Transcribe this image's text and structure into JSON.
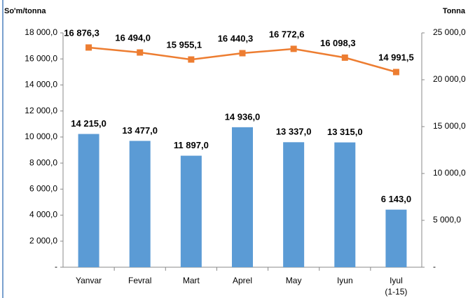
{
  "chart_data": {
    "type": "bar-line",
    "ylabel": "So'm/tonna",
    "y2label": "Tonna",
    "categories": [
      "Yanvar",
      "Fevral",
      "Mart",
      "Aprel",
      "May",
      "Iyun",
      "Iyul (1-15)"
    ],
    "series": [
      {
        "type": "bar",
        "axis": "y2",
        "color": "#5b9bd5",
        "values": [
          14215,
          13477,
          11897,
          14936,
          13337,
          13315,
          6143
        ],
        "value_labels": [
          "14 215,0",
          "13 477,0",
          "11 897,0",
          "14 936,0",
          "13 337,0",
          "13 315,0",
          "6 143,0"
        ]
      },
      {
        "type": "line",
        "color": "#ed7d31",
        "values": [
          16876.3,
          16494.0,
          15955.1,
          16440.3,
          16772.6,
          16098.3,
          14991.5
        ],
        "value_labels": [
          "16 876,3",
          "16 494,0",
          "15 955,1",
          "16 440,3",
          "16 772,6",
          "16 098,3",
          "14 991,5"
        ]
      }
    ],
    "ylim": [
      0,
      18000
    ],
    "yticks": [
      {
        "value": 0,
        "label": "-"
      },
      {
        "value": 2000,
        "label": "2 000,0"
      },
      {
        "value": 4000,
        "label": "4 000,0"
      },
      {
        "value": 6000,
        "label": "6 000,0"
      },
      {
        "value": 8000,
        "label": "8 000,0"
      },
      {
        "value": 10000,
        "label": "10 000,0"
      },
      {
        "value": 12000,
        "label": "12 000,0"
      },
      {
        "value": 14000,
        "label": "14 000,0"
      },
      {
        "value": 16000,
        "label": "16 000,0"
      },
      {
        "value": 18000,
        "label": "18 000,0"
      }
    ],
    "y2lim": [
      0,
      25000
    ],
    "y2ticks": [
      {
        "value": 0,
        "label": "-"
      },
      {
        "value": 5000,
        "label": "5 000,0"
      },
      {
        "value": 10000,
        "label": "10 000,0"
      },
      {
        "value": 15000,
        "label": "15 000,0"
      },
      {
        "value": 20000,
        "label": "20 000,0"
      },
      {
        "value": 25000,
        "label": "25 000,0"
      }
    ],
    "grid": false
  }
}
